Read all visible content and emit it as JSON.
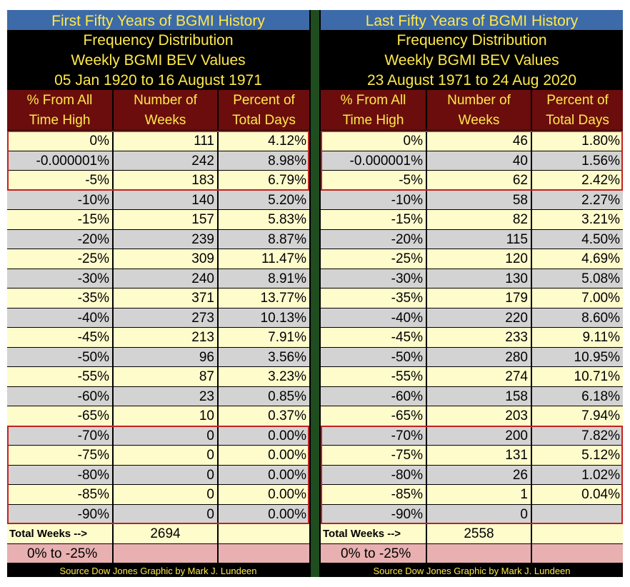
{
  "colors": {
    "title_bar": "#3d6aa8",
    "title_text": "#ffe94a",
    "header_bg": "#6b0d0d",
    "row_yellow": "#fffccc",
    "row_gray": "#d3d3d3",
    "pct_row": "#e8b0b0",
    "highlight_box": "#c42020",
    "divider": "#1f4d1f"
  },
  "columns": [
    "% From All|Time High",
    "Number of|Weeks",
    "Percent of|Total Days"
  ],
  "panels": [
    {
      "title": "First Fifty Years of BGMI History",
      "subtitle_lines": [
        "Frequency Distribution",
        "Weekly BGMI BEV Values",
        "05 Jan 1920 to 16 August 1971"
      ],
      "headers": [
        [
          "% From All",
          "Time High"
        ],
        [
          "Number of",
          "Weeks"
        ],
        [
          "Percent of",
          "Total Days"
        ]
      ],
      "rows": [
        [
          "0%",
          "111",
          "4.12%"
        ],
        [
          "-0.000001%",
          "242",
          "8.98%"
        ],
        [
          "-5%",
          "183",
          "6.79%"
        ],
        [
          "-10%",
          "140",
          "5.20%"
        ],
        [
          "-15%",
          "157",
          "5.83%"
        ],
        [
          "-20%",
          "239",
          "8.87%"
        ],
        [
          "-25%",
          "309",
          "11.47%"
        ],
        [
          "-30%",
          "240",
          "8.91%"
        ],
        [
          "-35%",
          "371",
          "13.77%"
        ],
        [
          "-40%",
          "273",
          "10.13%"
        ],
        [
          "-45%",
          "213",
          "7.91%"
        ],
        [
          "-50%",
          "96",
          "3.56%"
        ],
        [
          "-55%",
          "87",
          "3.23%"
        ],
        [
          "-60%",
          "23",
          "0.85%"
        ],
        [
          "-65%",
          "10",
          "0.37%"
        ],
        [
          "-70%",
          "0",
          "0.00%"
        ],
        [
          "-75%",
          "0",
          "0.00%"
        ],
        [
          "-80%",
          "0",
          "0.00%"
        ],
        [
          "-85%",
          "0",
          "0.00%"
        ],
        [
          "-90%",
          "0",
          "0.00%"
        ]
      ],
      "total_label": "Total Weeks -->",
      "total_value": "2694",
      "range_label": "0% to -25%",
      "footer": "Source Dow Jones   Graphic by Mark J. Lundeen"
    },
    {
      "title": "Last Fifty Years of BGMI History",
      "subtitle_lines": [
        "Frequency Distribution",
        "Weekly BGMI BEV Values",
        "23 August 1971 to 24 Aug 2020"
      ],
      "headers": [
        [
          "% From All",
          "Time High"
        ],
        [
          "Number of",
          "Weeks"
        ],
        [
          "Percent of",
          "Total Days"
        ]
      ],
      "rows": [
        [
          "0%",
          "46",
          "1.80%"
        ],
        [
          "-0.000001%",
          "40",
          "1.56%"
        ],
        [
          "-5%",
          "62",
          "2.42%"
        ],
        [
          "-10%",
          "58",
          "2.27%"
        ],
        [
          "-15%",
          "82",
          "3.21%"
        ],
        [
          "-20%",
          "115",
          "4.50%"
        ],
        [
          "-25%",
          "120",
          "4.69%"
        ],
        [
          "-30%",
          "130",
          "5.08%"
        ],
        [
          "-35%",
          "179",
          "7.00%"
        ],
        [
          "-40%",
          "220",
          "8.60%"
        ],
        [
          "-45%",
          "233",
          "9.11%"
        ],
        [
          "-50%",
          "280",
          "10.95%"
        ],
        [
          "-55%",
          "274",
          "10.71%"
        ],
        [
          "-60%",
          "158",
          "6.18%"
        ],
        [
          "-65%",
          "203",
          "7.94%"
        ],
        [
          "-70%",
          "200",
          "7.82%"
        ],
        [
          "-75%",
          "131",
          "5.12%"
        ],
        [
          "-80%",
          "26",
          "1.02%"
        ],
        [
          "-85%",
          "1",
          "0.04%"
        ],
        [
          "-90%",
          "0",
          ""
        ]
      ],
      "total_label": "Total Weeks -->",
      "total_value": "2558",
      "range_label": "0% to -25%",
      "footer": "Source Dow Jones   Graphic by Mark J. Lundeen"
    }
  ]
}
